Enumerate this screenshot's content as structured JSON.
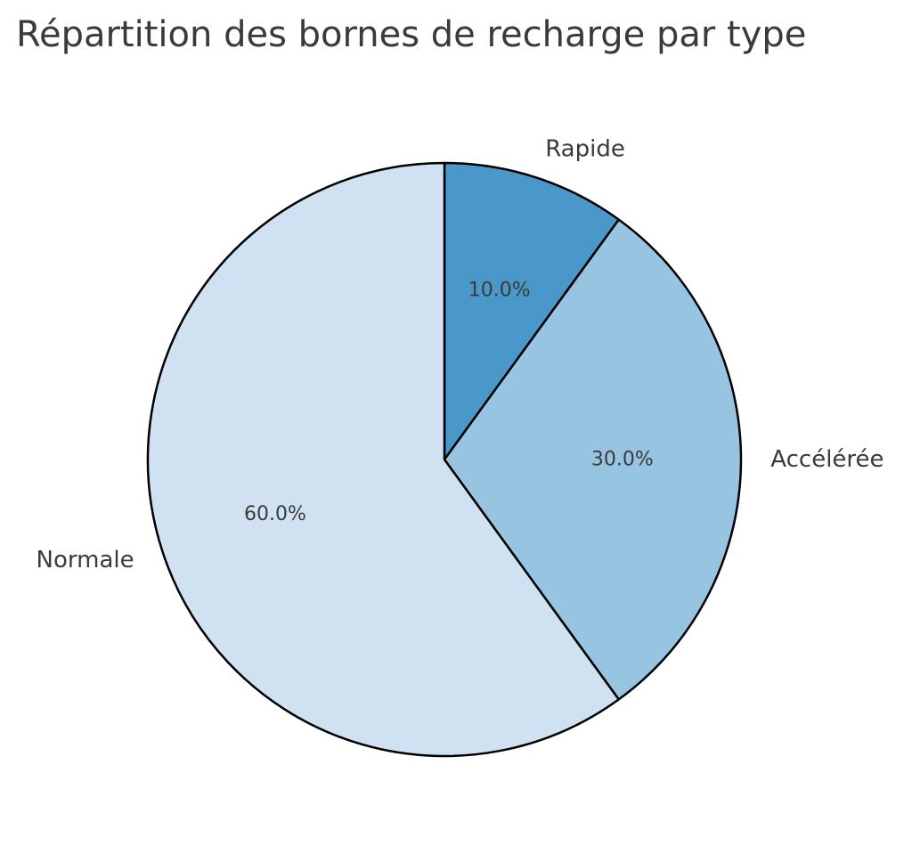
{
  "chart_data": {
    "type": "pie",
    "title": "Répartition des bornes de recharge par type",
    "categories": [
      "Rapide",
      "Accélérée",
      "Normale"
    ],
    "values": [
      10.0,
      30.0,
      60.0
    ],
    "percent_labels": [
      "10.0%",
      "30.0%",
      "60.0%"
    ],
    "colors": [
      "#4a97c9",
      "#96c4e1",
      "#d0e1f1"
    ],
    "edge_color": "#000000",
    "start_angle_deg": 90,
    "direction": "clockwise"
  }
}
